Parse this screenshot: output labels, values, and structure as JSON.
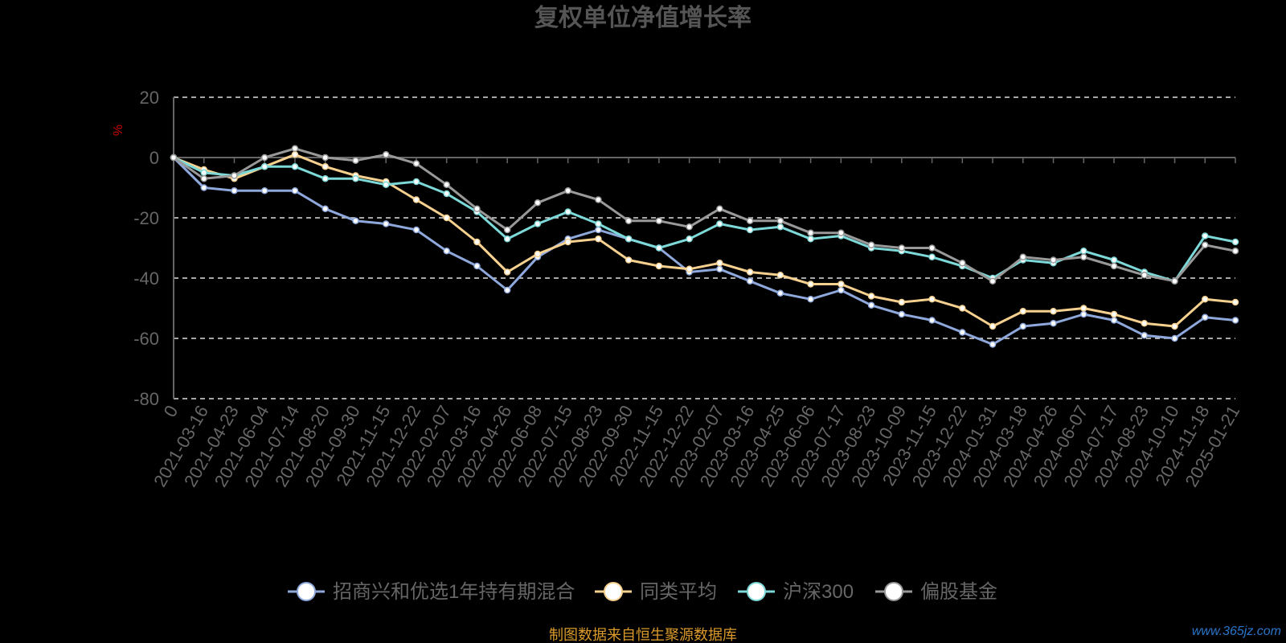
{
  "chart_data": {
    "type": "line",
    "title": "复权单位净值增长率",
    "ylabel": "%",
    "ylim": [
      -80,
      20
    ],
    "yticks": [
      20,
      0,
      -20,
      -40,
      -60,
      -80
    ],
    "grid": true,
    "legend_position": "bottom-center",
    "x": [
      "0",
      "2021-03-16",
      "2021-04-23",
      "2021-06-04",
      "2021-07-14",
      "2021-08-20",
      "2021-09-30",
      "2021-11-15",
      "2021-12-22",
      "2022-02-07",
      "2022-03-16",
      "2022-04-26",
      "2022-06-08",
      "2022-07-15",
      "2022-08-23",
      "2022-09-30",
      "2022-11-15",
      "2022-12-22",
      "2023-02-07",
      "2023-03-16",
      "2023-04-25",
      "2023-06-06",
      "2023-07-17",
      "2023-08-23",
      "2023-10-09",
      "2023-11-15",
      "2023-12-22",
      "2024-01-31",
      "2024-03-18",
      "2024-04-26",
      "2024-06-07",
      "2024-07-17",
      "2024-08-23",
      "2024-10-10",
      "2024-11-18",
      "2025-01-21"
    ],
    "series": [
      {
        "name": "招商兴和优选1年持有期混合",
        "color": "#8fa8dc",
        "values": [
          0,
          -10,
          -11,
          -11,
          -11,
          -17,
          -21,
          -22,
          -24,
          -31,
          -36,
          -44,
          -33,
          -27,
          -24,
          -27,
          -30,
          -38,
          -37,
          -41,
          -45,
          -47,
          -44,
          -49,
          -52,
          -54,
          -58,
          -62,
          -56,
          -55,
          -52,
          -54,
          -59,
          -60,
          -53,
          -54
        ]
      },
      {
        "name": "同类平均",
        "color": "#f5d08f",
        "values": [
          0,
          -4,
          -7,
          -3,
          1,
          -3,
          -6,
          -8,
          -14,
          -20,
          -28,
          -38,
          -32,
          -28,
          -27,
          -34,
          -36,
          -37,
          -35,
          -38,
          -39,
          -42,
          -42,
          -46,
          -48,
          -47,
          -50,
          -56,
          -51,
          -51,
          -50,
          -52,
          -55,
          -56,
          -47,
          -48
        ]
      },
      {
        "name": "沪深300",
        "color": "#7dd8d8",
        "values": [
          0,
          -5,
          -6,
          -3,
          -3,
          -7,
          -7,
          -9,
          -8,
          -12,
          -18,
          -27,
          -22,
          -18,
          -22,
          -27,
          -30,
          -27,
          -22,
          -24,
          -23,
          -27,
          -26,
          -30,
          -31,
          -33,
          -36,
          -40,
          -34,
          -35,
          -31,
          -34,
          -38,
          -41,
          -26,
          -28
        ]
      },
      {
        "name": "偏股基金",
        "color": "#999999",
        "values": [
          0,
          -7,
          -6,
          0,
          3,
          0,
          -1,
          1,
          -2,
          -9,
          -17,
          -24,
          -15,
          -11,
          -14,
          -21,
          -21,
          -23,
          -17,
          -21,
          -21,
          -25,
          -25,
          -29,
          -30,
          -30,
          -35,
          -41,
          -33,
          -34,
          -33,
          -36,
          -39,
          -41,
          -29,
          -31
        ]
      }
    ]
  },
  "footer": {
    "source": "制图数据来自恒生聚源数据库",
    "watermark": "www.365jz.com"
  }
}
